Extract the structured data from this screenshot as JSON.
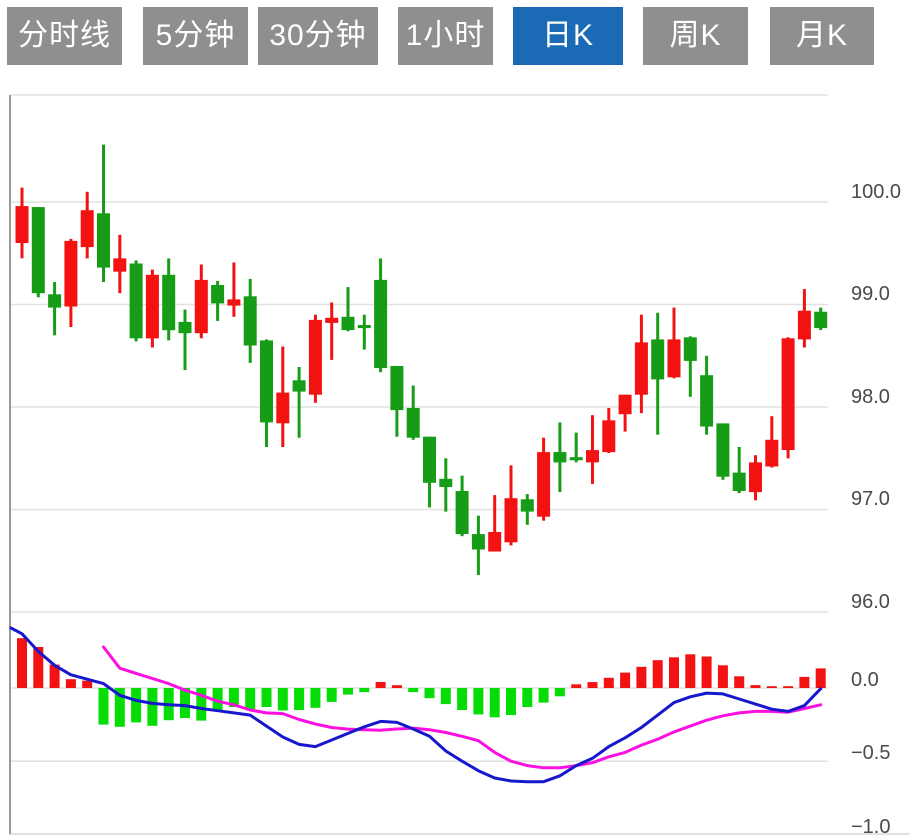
{
  "tabs": {
    "active_index": 4,
    "active_color": "#1a6ab5",
    "inactive_color": "#8f8f8f",
    "text_color": "#ffffff",
    "items": [
      {
        "label": "分时线"
      },
      {
        "label": "5分钟"
      },
      {
        "label": "30分钟"
      },
      {
        "label": "1小时"
      },
      {
        "label": "日K"
      },
      {
        "label": "周K"
      },
      {
        "label": "月K"
      }
    ]
  },
  "price_axis": {
    "labels": [
      "100.0",
      "99.0",
      "98.0",
      "97.0",
      "96.0"
    ],
    "values": [
      100.0,
      99.0,
      98.0,
      97.0,
      96.0
    ]
  },
  "macd_axis": {
    "labels": [
      "0.0",
      "−0.5",
      "−1.0"
    ],
    "values": [
      0.0,
      -0.5,
      -1.0
    ]
  },
  "chart_data": {
    "type": "candlestick",
    "title": "",
    "panels": [
      "price-kline",
      "macd-indicator"
    ],
    "x_count": 50,
    "price_ylim": [
      95.8,
      101.0
    ],
    "price_ticks": [
      100.0,
      99.0,
      98.0,
      97.0,
      96.0
    ],
    "macd_ticks": [
      0.0,
      -0.5,
      -1.0
    ],
    "grid": true,
    "candles_ohlc": [
      [
        99.6,
        100.14,
        99.45,
        99.96
      ],
      [
        99.95,
        99.95,
        99.07,
        99.11
      ],
      [
        99.1,
        99.22,
        98.7,
        98.97
      ],
      [
        98.98,
        99.64,
        98.78,
        99.62
      ],
      [
        99.56,
        100.1,
        99.45,
        99.92
      ],
      [
        99.89,
        100.56,
        99.22,
        99.36
      ],
      [
        99.32,
        99.68,
        99.11,
        99.45
      ],
      [
        99.4,
        99.43,
        98.64,
        98.67
      ],
      [
        98.67,
        99.34,
        98.58,
        99.29
      ],
      [
        99.29,
        99.45,
        98.65,
        98.75
      ],
      [
        98.83,
        98.95,
        98.36,
        98.72
      ],
      [
        98.72,
        99.39,
        98.67,
        99.24
      ],
      [
        99.19,
        99.23,
        98.84,
        99.01
      ],
      [
        98.99,
        99.41,
        98.88,
        99.05
      ],
      [
        99.08,
        99.25,
        98.43,
        98.6
      ],
      [
        98.65,
        98.66,
        97.61,
        97.85
      ],
      [
        97.84,
        98.59,
        97.61,
        98.14
      ],
      [
        98.26,
        98.39,
        97.7,
        98.15
      ],
      [
        98.12,
        98.9,
        98.04,
        98.85
      ],
      [
        98.82,
        99.02,
        98.46,
        98.87
      ],
      [
        98.88,
        99.17,
        98.74,
        98.75
      ],
      [
        98.8,
        98.9,
        98.56,
        98.77
      ],
      [
        99.24,
        99.45,
        98.34,
        98.38
      ],
      [
        98.4,
        98.4,
        97.71,
        97.97
      ],
      [
        97.99,
        98.21,
        97.68,
        97.7
      ],
      [
        97.71,
        97.71,
        97.02,
        97.26
      ],
      [
        97.3,
        97.5,
        96.98,
        97.22
      ],
      [
        97.18,
        97.33,
        96.74,
        96.76
      ],
      [
        96.76,
        96.94,
        96.36,
        96.61
      ],
      [
        96.59,
        97.14,
        96.59,
        96.78
      ],
      [
        96.68,
        97.43,
        96.65,
        97.11
      ],
      [
        97.1,
        97.15,
        96.85,
        96.98
      ],
      [
        96.93,
        97.7,
        96.89,
        97.56
      ],
      [
        97.56,
        97.85,
        97.17,
        97.46
      ],
      [
        97.51,
        97.75,
        97.46,
        97.48
      ],
      [
        97.46,
        97.92,
        97.25,
        97.58
      ],
      [
        97.56,
        97.99,
        97.55,
        97.87
      ],
      [
        97.93,
        98.12,
        97.76,
        98.12
      ],
      [
        98.12,
        98.9,
        97.94,
        98.63
      ],
      [
        98.66,
        98.92,
        97.73,
        98.27
      ],
      [
        98.29,
        98.97,
        98.28,
        98.66
      ],
      [
        98.68,
        98.69,
        98.1,
        98.45
      ],
      [
        98.31,
        98.5,
        97.73,
        97.81
      ],
      [
        97.84,
        97.84,
        97.29,
        97.32
      ],
      [
        97.36,
        97.61,
        97.16,
        97.18
      ],
      [
        97.17,
        97.53,
        97.09,
        97.46
      ],
      [
        97.42,
        97.91,
        97.41,
        97.68
      ],
      [
        97.58,
        98.68,
        97.5,
        98.67
      ],
      [
        98.66,
        99.15,
        98.58,
        98.94
      ],
      [
        98.93,
        98.97,
        98.75,
        98.77
      ]
    ],
    "macd": {
      "histogram": [
        0.34,
        0.28,
        0.16,
        0.06,
        0.05,
        -0.25,
        -0.265,
        -0.235,
        -0.258,
        -0.22,
        -0.205,
        -0.223,
        -0.154,
        -0.13,
        -0.15,
        -0.13,
        -0.154,
        -0.15,
        -0.135,
        -0.095,
        -0.045,
        -0.028,
        0.041,
        0.019,
        -0.028,
        -0.07,
        -0.11,
        -0.15,
        -0.18,
        -0.2,
        -0.185,
        -0.13,
        -0.1,
        -0.057,
        0.025,
        0.04,
        0.07,
        0.105,
        0.145,
        0.19,
        0.21,
        0.23,
        0.215,
        0.155,
        0.08,
        0.02,
        0.012,
        0.012,
        0.076,
        0.134
      ],
      "dif_line": {
        "left_edge_value": 0.41,
        "values": [
          0.37,
          0.25,
          0.155,
          0.09,
          0.06,
          0.03,
          -0.05,
          -0.085,
          -0.105,
          -0.115,
          -0.12,
          -0.14,
          -0.155,
          -0.17,
          -0.185,
          -0.26,
          -0.335,
          -0.385,
          -0.4,
          -0.355,
          -0.31,
          -0.265,
          -0.228,
          -0.235,
          -0.28,
          -0.33,
          -0.43,
          -0.5,
          -0.565,
          -0.615,
          -0.635,
          -0.64,
          -0.64,
          -0.6,
          -0.53,
          -0.48,
          -0.4,
          -0.34,
          -0.27,
          -0.185,
          -0.1,
          -0.06,
          -0.035,
          -0.04,
          -0.075,
          -0.11,
          -0.145,
          -0.16,
          -0.12,
          -0.005
        ]
      },
      "dea_line": {
        "start_index": 5,
        "values": [
          0.28,
          0.135,
          0.1,
          0.065,
          0.03,
          -0.015,
          -0.05,
          -0.09,
          -0.115,
          -0.15,
          -0.17,
          -0.175,
          -0.215,
          -0.246,
          -0.27,
          -0.281,
          -0.285,
          -0.288,
          -0.28,
          -0.274,
          -0.285,
          -0.304,
          -0.33,
          -0.36,
          -0.44,
          -0.5,
          -0.53,
          -0.545,
          -0.545,
          -0.53,
          -0.51,
          -0.47,
          -0.44,
          -0.39,
          -0.35,
          -0.3,
          -0.26,
          -0.22,
          -0.19,
          -0.17,
          -0.16,
          -0.16,
          -0.165,
          -0.14,
          -0.115
        ]
      }
    },
    "colors": {
      "candle_up": "#f21212",
      "candle_down": "#169c16",
      "hist_positive": "#f21212",
      "hist_negative": "#06dd06",
      "dif_line": "#1717cd",
      "dea_line": "#fa10e0",
      "grid": "#e2e2e2",
      "bottom_line": "#d8d8d8",
      "left_border": "#9a9a9a",
      "axis_text": "#4a4a4a"
    }
  }
}
